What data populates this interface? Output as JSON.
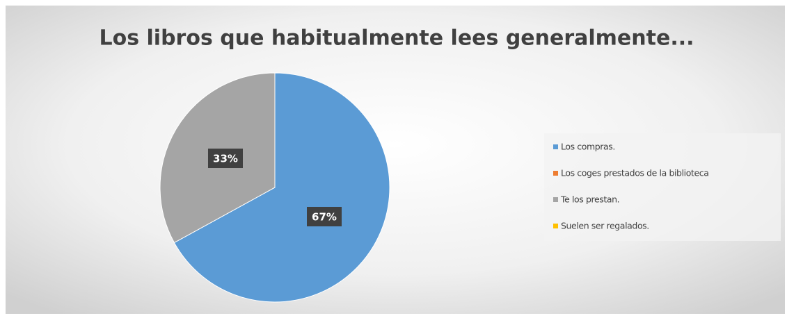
{
  "chart_data": {
    "type": "pie",
    "title": "Los libros que habitualmente lees generalmente...",
    "categories": [
      "Los compras.",
      "Los coges prestados de la biblioteca",
      "Te los prestan.",
      "Suelen ser regalados."
    ],
    "values": [
      67,
      0,
      33,
      0
    ],
    "value_labels": [
      "67%",
      null,
      "33%",
      null
    ],
    "colors": [
      "#5b9bd5",
      "#ed7d31",
      "#a5a5a5",
      "#ffc000"
    ],
    "legend": "right"
  }
}
